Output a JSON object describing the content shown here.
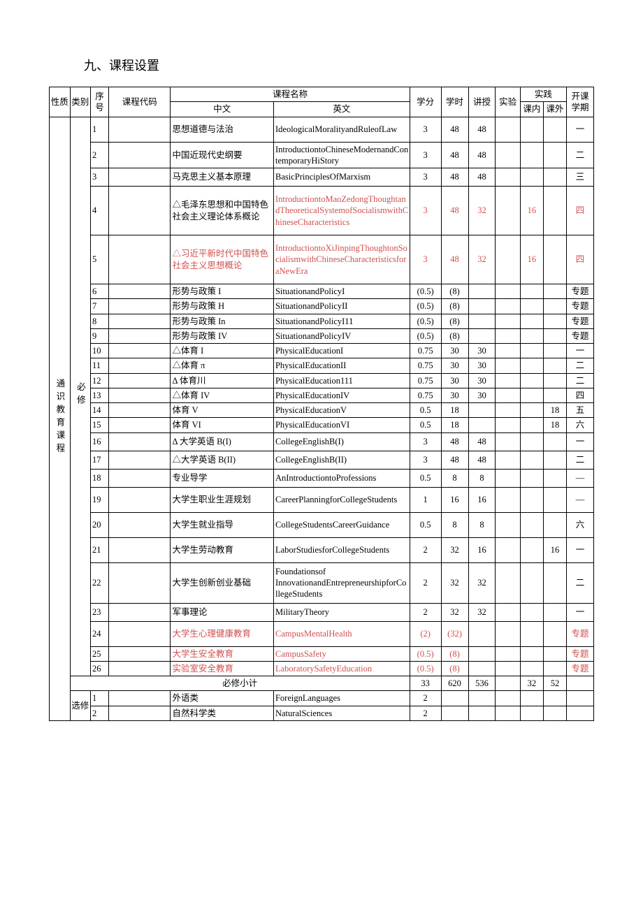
{
  "title": "九、课程设置",
  "headers": {
    "nature": "性质",
    "category": "类别",
    "seq": "序号",
    "code": "课程代码",
    "course_name": "课程名称",
    "cn": "中文",
    "en": "英文",
    "credits": "学分",
    "hours": "学时",
    "teach": "讲授",
    "experiment": "实验",
    "practice": "实践",
    "practice_in": "课内",
    "practice_out": "课外",
    "semester": "开课学期"
  },
  "nature_label": "通识教育课程",
  "cat_required": "必修",
  "cat_elective": "选修",
  "subtotal_label": "必修小计",
  "rows": [
    {
      "seq": "1",
      "cn": "思想道德与法治",
      "en": "IdeologicalMoralityandRuleofLaw",
      "credits": "3",
      "hours": "48",
      "teach": "48",
      "exp": "",
      "pin": "",
      "pout": "",
      "sem": "一",
      "red": false,
      "h": "tall"
    },
    {
      "seq": "2",
      "cn": "中国近现代史纲要",
      "en": "IntroductiontoChineseModernandContemporaryHiStory",
      "credits": "3",
      "hours": "48",
      "teach": "48",
      "exp": "",
      "pin": "",
      "pout": "",
      "sem": "二",
      "red": false,
      "h": "tall"
    },
    {
      "seq": "3",
      "cn": "马克思主义基本原理",
      "en": "BasicPrinciplesOfMarxism",
      "credits": "3",
      "hours": "48",
      "teach": "48",
      "exp": "",
      "pin": "",
      "pout": "",
      "sem": "三",
      "red": false,
      "h": "mid"
    },
    {
      "seq": "4",
      "cn": "△毛泽东思想和中国特色社会主义理论体系概论",
      "en": "IntroductiontoMaoZedongThoughtandTheoreticalSystemofSocialismwithChineseCharacteristics",
      "credits": "3",
      "hours": "48",
      "teach": "32",
      "exp": "",
      "pin": "16",
      "pout": "",
      "sem": "四",
      "red": true,
      "redcn": false,
      "h": "tallest"
    },
    {
      "seq": "5",
      "cn": "△习近平新时代中国特色社会主义思想概论",
      "en": "IntroductiontoXiJinpingThoughtonSocialismwithChineseCharacteristicsforaNewEra",
      "credits": "3",
      "hours": "48",
      "teach": "32",
      "exp": "",
      "pin": "16",
      "pout": "",
      "sem": "四",
      "red": true,
      "redcn": true,
      "h": "tallest"
    },
    {
      "seq": "6",
      "cn": "形势与政策 I",
      "en": "SituationandPolicyI",
      "credits": "(0.5)",
      "hours": "(8)",
      "teach": "",
      "exp": "",
      "pin": "",
      "pout": "",
      "sem": "专题",
      "red": false,
      "h": "narrow"
    },
    {
      "seq": "7",
      "cn": "形势与政策 H",
      "en": "SituationandPolicyII",
      "credits": "(0.5)",
      "hours": "(8)",
      "teach": "",
      "exp": "",
      "pin": "",
      "pout": "",
      "sem": "专题",
      "red": false,
      "h": "narrow"
    },
    {
      "seq": "8",
      "cn": "形势与政策 In",
      "en": "SituationandPolicyI11",
      "credits": "(0.5)",
      "hours": "(8)",
      "teach": "",
      "exp": "",
      "pin": "",
      "pout": "",
      "sem": "专题",
      "red": false,
      "h": "narrow"
    },
    {
      "seq": "9",
      "cn": "形势与政策 IV",
      "en": "SituationandPolicyIV",
      "credits": "(0.5)",
      "hours": "(8)",
      "teach": "",
      "exp": "",
      "pin": "",
      "pout": "",
      "sem": "专题",
      "red": false,
      "h": "narrow"
    },
    {
      "seq": "10",
      "cn": "△体育 I",
      "en": "PhysicalEducationI",
      "credits": "0.75",
      "hours": "30",
      "teach": "30",
      "exp": "",
      "pin": "",
      "pout": "",
      "sem": "一",
      "red": false,
      "h": "narrow"
    },
    {
      "seq": "11",
      "cn": "△体育 π",
      "en": "PhysicalEducationII",
      "credits": "0.75",
      "hours": "30",
      "teach": "30",
      "exp": "",
      "pin": "",
      "pout": "",
      "sem": "二",
      "red": false,
      "h": "narrow"
    },
    {
      "seq": "12",
      "cn": "Δ 体育川",
      "en": "PhysicalEducation111",
      "credits": "0.75",
      "hours": "30",
      "teach": "30",
      "exp": "",
      "pin": "",
      "pout": "",
      "sem": "二",
      "red": false,
      "h": "narrow"
    },
    {
      "seq": "13",
      "cn": "△体育 IV",
      "en": "PhysicalEducationIV",
      "credits": "0.75",
      "hours": "30",
      "teach": "30",
      "exp": "",
      "pin": "",
      "pout": "",
      "sem": "四",
      "red": false,
      "h": "narrow"
    },
    {
      "seq": "14",
      "cn": "体育 V",
      "en": "PhysicalEducationV",
      "credits": "0.5",
      "hours": "18",
      "teach": "",
      "exp": "",
      "pin": "",
      "pout": "18",
      "sem": "五",
      "red": false,
      "h": "narrow"
    },
    {
      "seq": "15",
      "cn": "体育 VI",
      "en": "PhysicalEducationVI",
      "credits": "0.5",
      "hours": "18",
      "teach": "",
      "exp": "",
      "pin": "",
      "pout": "18",
      "sem": "六",
      "red": false,
      "h": "narrow"
    },
    {
      "seq": "16",
      "cn": "Δ 大学英语 B(I)",
      "en": "CollegeEnglishB(I)",
      "credits": "3",
      "hours": "48",
      "teach": "48",
      "exp": "",
      "pin": "",
      "pout": "",
      "sem": "一",
      "red": false,
      "h": "mid"
    },
    {
      "seq": "17",
      "cn": "△大学英语 B(II)",
      "en": "CollegeEnglishB(II)",
      "credits": "3",
      "hours": "48",
      "teach": "48",
      "exp": "",
      "pin": "",
      "pout": "",
      "sem": "二",
      "red": false,
      "h": "mid"
    },
    {
      "seq": "18",
      "cn": "专业导学",
      "en": "AnIntroductiontoProfessions",
      "credits": "0.5",
      "hours": "8",
      "teach": "8",
      "exp": "",
      "pin": "",
      "pout": "",
      "sem": "—",
      "red": false,
      "h": "mid"
    },
    {
      "seq": "19",
      "cn": "大学生职业生涯规划",
      "en": "CareerPlanningforCollegeStudents",
      "credits": "1",
      "hours": "16",
      "teach": "16",
      "exp": "",
      "pin": "",
      "pout": "",
      "sem": "—",
      "red": false,
      "h": "tall"
    },
    {
      "seq": "20",
      "cn": "大学生就业指导",
      "en": "CollegeStudentsCareerGuidance",
      "credits": "0.5",
      "hours": "8",
      "teach": "8",
      "exp": "",
      "pin": "",
      "pout": "",
      "sem": "六",
      "red": false,
      "h": "tall"
    },
    {
      "seq": "21",
      "cn": "大学生劳动教育",
      "en": "LaborStudiesforCollegeStudents",
      "credits": "2",
      "hours": "32",
      "teach": "16",
      "exp": "",
      "pin": "",
      "pout": "16",
      "sem": "一",
      "red": false,
      "h": "tall"
    },
    {
      "seq": "22",
      "cn": "大学生创新创业基础",
      "en": "Foundationsof\nInnovationandEntrepreneurshipforCollegeStudents",
      "credits": "2",
      "hours": "32",
      "teach": "32",
      "exp": "",
      "pin": "",
      "pout": "",
      "sem": "二",
      "red": false,
      "h": "taller"
    },
    {
      "seq": "23",
      "cn": "军事理论",
      "en": "MilitaryTheory",
      "credits": "2",
      "hours": "32",
      "teach": "32",
      "exp": "",
      "pin": "",
      "pout": "",
      "sem": "一",
      "red": false,
      "h": "mid"
    },
    {
      "seq": "24",
      "cn": "大学生心理健康教育",
      "en": "CampusMentalHealth",
      "credits": "(2)",
      "hours": "(32)",
      "teach": "",
      "exp": "",
      "pin": "",
      "pout": "",
      "sem": "专题",
      "red": true,
      "redcn": true,
      "h": "tall"
    },
    {
      "seq": "25",
      "cn": "大学生安全教育",
      "en": "CampusSafety",
      "credits": "(0.5)",
      "hours": "(8)",
      "teach": "",
      "exp": "",
      "pin": "",
      "pout": "",
      "sem": "专题",
      "red": true,
      "redcn": true,
      "h": "narrow"
    },
    {
      "seq": "26",
      "cn": "实验室安全教育",
      "en": "LaboratorySafetyEducation",
      "credits": "(0.5)",
      "hours": "(8)",
      "teach": "",
      "exp": "",
      "pin": "",
      "pout": "",
      "sem": "专题",
      "red": true,
      "redcn": true,
      "h": "narrow"
    }
  ],
  "subtotal": {
    "credits": "33",
    "hours": "620",
    "teach": "536",
    "exp": "",
    "pin": "32",
    "pout": "52",
    "sem": ""
  },
  "elective": [
    {
      "seq": "1",
      "cn": "外语类",
      "en": "ForeignLanguages",
      "credits": "2"
    },
    {
      "seq": "2",
      "cn": "自然科学类",
      "en": "NaturalSciences",
      "credits": "2"
    }
  ]
}
